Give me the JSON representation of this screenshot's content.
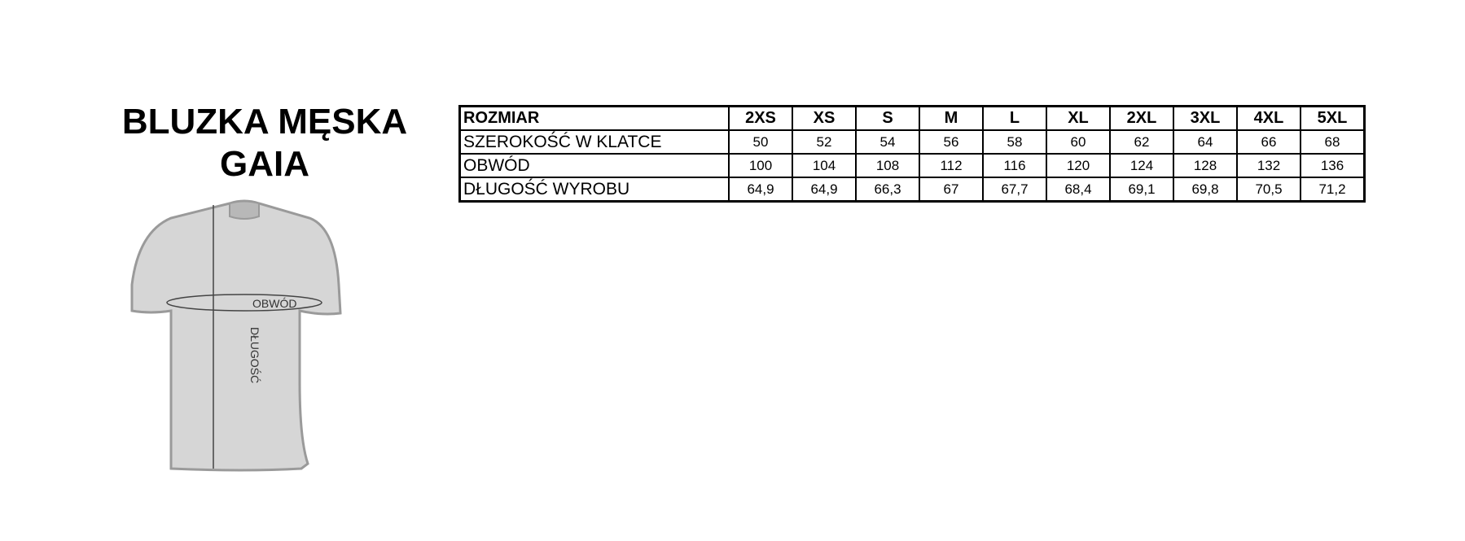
{
  "title": {
    "line1": "BLUZKA MĘSKA",
    "line2": "GAIA"
  },
  "diagram": {
    "girth_label": "OBWÓD",
    "length_label": "DŁUGOŚĆ",
    "shirt_color": "#d6d6d6",
    "outline_color": "#9a9a9a"
  },
  "table": {
    "header_label": "ROZMIAR",
    "sizes": [
      "2XS",
      "XS",
      "S",
      "M",
      "L",
      "XL",
      "2XL",
      "3XL",
      "4XL",
      "5XL"
    ],
    "rows": [
      {
        "label": "SZEROKOŚĆ W KLATCE",
        "values": [
          "50",
          "52",
          "54",
          "56",
          "58",
          "60",
          "62",
          "64",
          "66",
          "68"
        ]
      },
      {
        "label": "OBWÓD",
        "values": [
          "100",
          "104",
          "108",
          "112",
          "116",
          "120",
          "124",
          "128",
          "132",
          "136"
        ]
      },
      {
        "label": "DŁUGOŚĆ WYROBU",
        "values": [
          "64,9",
          "64,9",
          "66,3",
          "67",
          "67,7",
          "68,4",
          "69,1",
          "69,8",
          "70,5",
          "71,2"
        ]
      }
    ]
  }
}
